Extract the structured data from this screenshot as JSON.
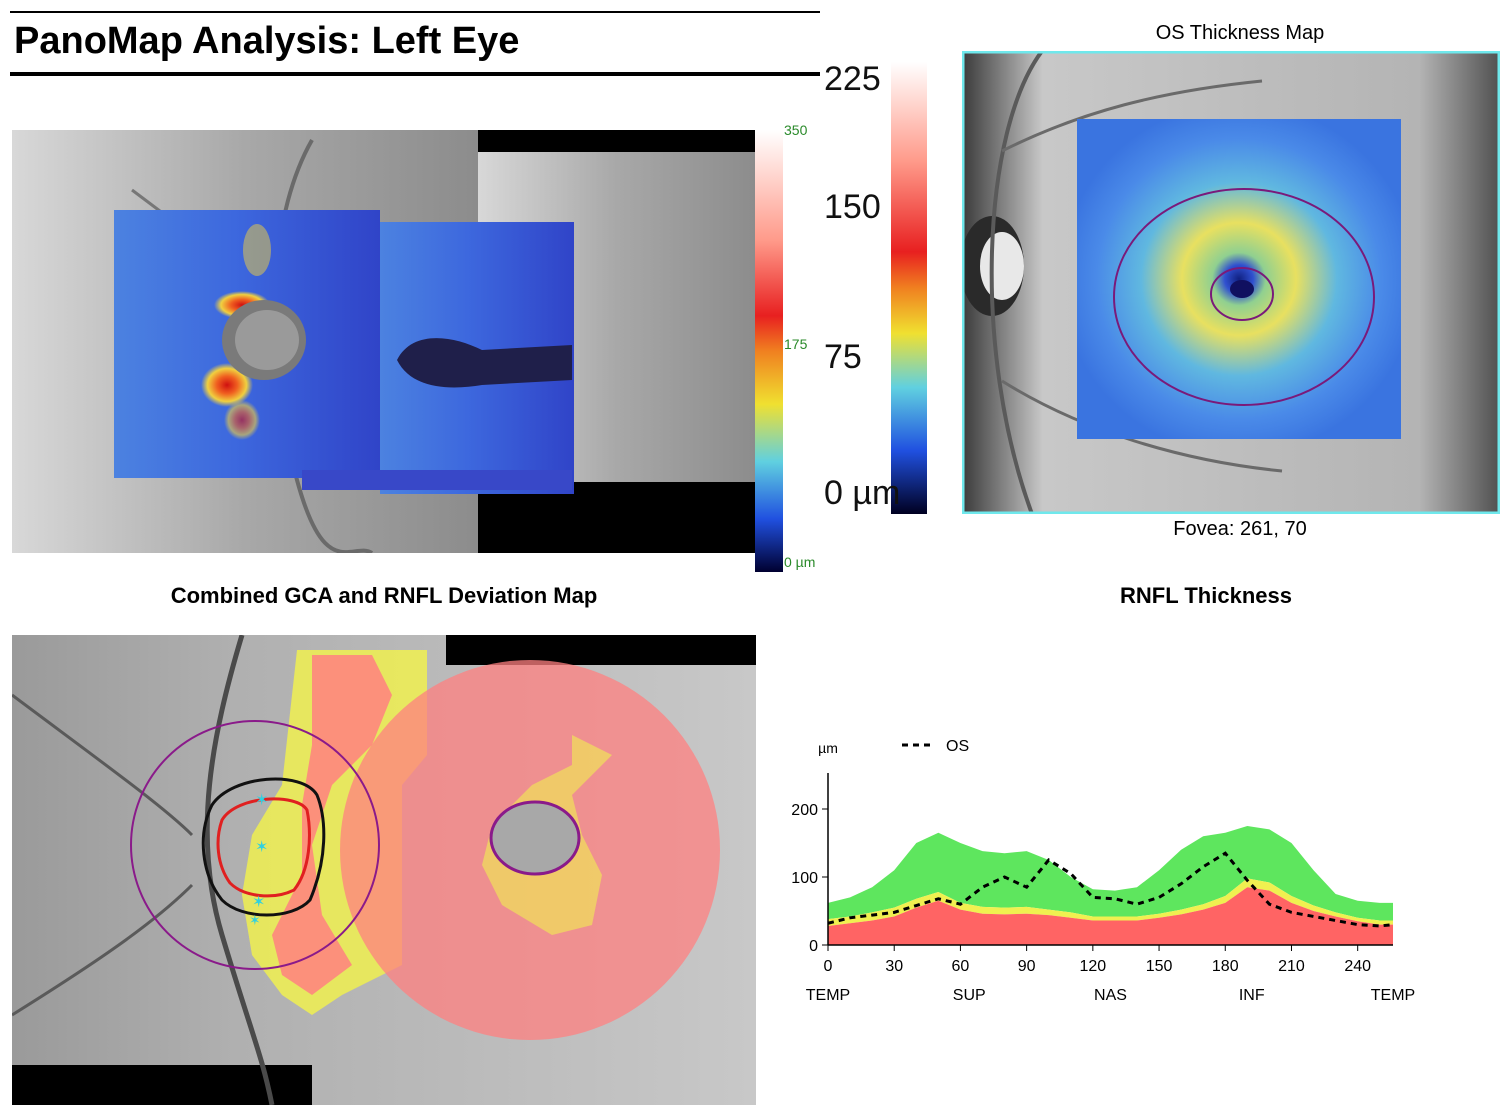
{
  "page": {
    "title": "PanoMap Analysis: Left Eye"
  },
  "panorama": {
    "scale_labels": [
      "350",
      "175",
      "0 µm"
    ]
  },
  "thickness_scale": {
    "labels": [
      "225",
      "150",
      "75",
      "0 µm"
    ]
  },
  "thickness_map": {
    "title": "OS Thickness Map",
    "fovea_label": "Fovea: 261, 70"
  },
  "deviation_map": {
    "title": "Combined GCA and RNFL Deviation Map"
  },
  "colors": {
    "normal_green": "#5ee65e",
    "borderline_yellow": "#f0f050",
    "abnormal_red": "#ff6464",
    "map_blue": "#3d6fe0",
    "frame_cyan": "#6fe8ec",
    "circle_purple": "#8a1a8a"
  },
  "chart_data": {
    "type": "line",
    "title": "RNFL Thickness",
    "ylabel": "µm",
    "xlabel": "",
    "ylim": [
      0,
      250
    ],
    "xlim": [
      0,
      256
    ],
    "x_ticks": [
      0,
      30,
      60,
      90,
      120,
      150,
      180,
      210,
      240
    ],
    "y_ticks": [
      0,
      100,
      200
    ],
    "sector_labels": [
      {
        "x": 0,
        "label": "TEMP"
      },
      {
        "x": 64,
        "label": "SUP"
      },
      {
        "x": 128,
        "label": "NAS"
      },
      {
        "x": 192,
        "label": "INF"
      },
      {
        "x": 256,
        "label": "TEMP"
      }
    ],
    "legend": [
      "OS"
    ],
    "legend_position": "top-left",
    "x": [
      0,
      10,
      20,
      30,
      40,
      50,
      60,
      70,
      80,
      90,
      100,
      110,
      120,
      130,
      140,
      150,
      160,
      170,
      180,
      190,
      200,
      210,
      220,
      230,
      240,
      250,
      256
    ],
    "series": [
      {
        "name": "OS",
        "style": "dashed",
        "values": [
          32,
          40,
          44,
          48,
          58,
          68,
          60,
          85,
          100,
          85,
          125,
          105,
          70,
          68,
          60,
          70,
          90,
          115,
          135,
          95,
          60,
          48,
          42,
          36,
          30,
          28,
          30
        ]
      }
    ],
    "normative_bands": {
      "red_upper": [
        28,
        32,
        36,
        42,
        55,
        65,
        52,
        46,
        45,
        46,
        44,
        40,
        36,
        36,
        36,
        40,
        45,
        52,
        62,
        85,
        80,
        62,
        50,
        42,
        35,
        30,
        30
      ],
      "yellow_upper": [
        38,
        42,
        48,
        55,
        68,
        78,
        62,
        56,
        55,
        56,
        52,
        48,
        42,
        42,
        42,
        46,
        52,
        60,
        72,
        98,
        92,
        72,
        58,
        48,
        40,
        36,
        36
      ],
      "green_upper": [
        62,
        70,
        85,
        110,
        150,
        165,
        150,
        138,
        135,
        138,
        125,
        100,
        82,
        80,
        85,
        110,
        140,
        160,
        165,
        175,
        170,
        150,
        110,
        75,
        65,
        62,
        62
      ]
    }
  }
}
